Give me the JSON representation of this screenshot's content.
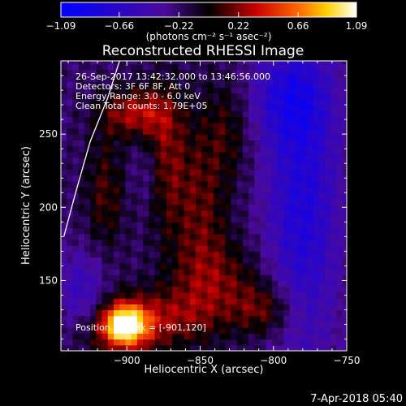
{
  "chart_data": {
    "type": "heatmap",
    "title": "Reconstructed RHESSI Image",
    "xlabel": "Heliocentric X (arcsec)",
    "ylabel": "Heliocentric Y (arcsec)",
    "xlim": [
      -945,
      -750
    ],
    "ylim": [
      102,
      300
    ],
    "xticks": [
      -900,
      -850,
      -800,
      -750
    ],
    "xtick_labels": [
      "−900",
      "−850",
      "−800",
      "−750"
    ],
    "yticks": [
      150,
      200,
      250
    ],
    "ytick_labels": [
      "150",
      "200",
      "250"
    ],
    "colorbar": {
      "range": [
        -1.09,
        1.09
      ],
      "ticks": [
        -1.09,
        -0.66,
        -0.22,
        0.22,
        0.66,
        1.09
      ],
      "tick_labels": [
        "−1.09",
        "−0.66",
        "−0.22",
        "0.22",
        "0.66",
        "1.09"
      ],
      "unit_label": "(photons cm⁻² s⁻¹ asec⁻²)"
    },
    "annotations": {
      "time": "26-Sep-2017 13:42:32.000 to 13:46:56.000",
      "detectors": "Detectors: 3F 6F 8F, Att 0",
      "energy": "Energy Range: 3.0 - 6.0 keV",
      "method": "Clean     Total counts: 1.79E+05",
      "peak": "Position of Peak = [-901,120]"
    },
    "peak": [
      -901,
      120
    ],
    "limb": [
      [
        -943,
        180
      ],
      [
        -935,
        210
      ],
      [
        -925,
        245
      ],
      [
        -913,
        275
      ],
      [
        -905,
        300
      ]
    ],
    "sources": [
      {
        "x": -901,
        "y": 120,
        "amp": 1.09,
        "sx": 10,
        "sy": 9
      },
      {
        "x": -905,
        "y": 118,
        "amp": 0.45,
        "sx": 22,
        "sy": 16
      },
      {
        "x": -895,
        "y": 265,
        "amp": 0.5,
        "sx": 16,
        "sy": 12
      },
      {
        "x": -875,
        "y": 235,
        "amp": 0.4,
        "sx": 10,
        "sy": 35
      },
      {
        "x": -915,
        "y": 210,
        "amp": 0.32,
        "sx": 10,
        "sy": 30
      },
      {
        "x": -850,
        "y": 200,
        "amp": 0.35,
        "sx": 14,
        "sy": 45
      },
      {
        "x": -835,
        "y": 150,
        "amp": 0.3,
        "sx": 24,
        "sy": 20
      },
      {
        "x": -805,
        "y": 130,
        "amp": 0.38,
        "sx": 15,
        "sy": 13
      },
      {
        "x": -870,
        "y": 125,
        "amp": 0.3,
        "sx": 25,
        "sy": 14
      },
      {
        "x": -830,
        "y": 255,
        "amp": 0.25,
        "sx": 12,
        "sy": 25
      }
    ],
    "dips": [
      {
        "x": -780,
        "y": 200,
        "amp": -0.55,
        "sx": 18,
        "sy": 75
      },
      {
        "x": -790,
        "y": 275,
        "amp": -0.4,
        "sx": 20,
        "sy": 22
      },
      {
        "x": -930,
        "y": 140,
        "amp": -0.4,
        "sx": 12,
        "sy": 20
      },
      {
        "x": -885,
        "y": 225,
        "amp": -0.2,
        "sx": 8,
        "sy": 18
      }
    ]
  },
  "footer": {
    "timestamp": "7-Apr-2018 05:40"
  }
}
